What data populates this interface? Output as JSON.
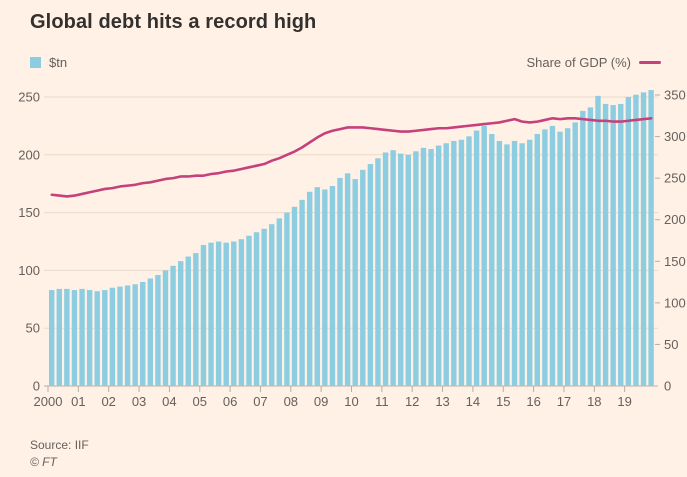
{
  "title": "Global debt hits a record high",
  "legend": {
    "bars_label": "$tn",
    "line_label": "Share of GDP (%)"
  },
  "source": "Source: IIF",
  "credit": "© FT",
  "colors": {
    "background": "#FFF1E5",
    "bar": "#8DCDE2",
    "line": "#C5417B",
    "title_text": "#33302E",
    "label_text": "#66605C",
    "gridline": "#EADACA",
    "axis": "#B9AEA3"
  },
  "chart_data": {
    "type": "bar",
    "subtype": "bar-with-line-overlay",
    "x_unit": "quarterly",
    "x_range": [
      "2000 Q1",
      "2019 Q4"
    ],
    "year_tick_labels": [
      "2000",
      "01",
      "02",
      "03",
      "04",
      "05",
      "06",
      "07",
      "08",
      "09",
      "10",
      "11",
      "12",
      "13",
      "14",
      "15",
      "16",
      "17",
      "18",
      "19"
    ],
    "left_axis": {
      "label": "$tn",
      "min": 0,
      "max": 250,
      "ticks": [
        0,
        50,
        100,
        150,
        200,
        250
      ]
    },
    "right_axis": {
      "label": "Share of GDP (%)",
      "min": 0,
      "max": 350,
      "ticks": [
        0,
        50,
        100,
        150,
        200,
        250,
        300,
        350
      ]
    },
    "grid": "horizontal-left-axis",
    "legend_position": "top",
    "series": [
      {
        "name": "$tn",
        "type": "bar",
        "axis": "left",
        "values": [
          83,
          84,
          84,
          83,
          84,
          83,
          82,
          83,
          85,
          86,
          87,
          88,
          90,
          93,
          96,
          100,
          104,
          108,
          112,
          115,
          122,
          124,
          125,
          124,
          125,
          127,
          130,
          133,
          136,
          140,
          145,
          150,
          155,
          161,
          168,
          172,
          170,
          173,
          180,
          184,
          179,
          187,
          192,
          197,
          202,
          204,
          201,
          200,
          203,
          206,
          205,
          208,
          210,
          212,
          213,
          216,
          221,
          225,
          218,
          212,
          209,
          212,
          210,
          213,
          218,
          222,
          225,
          220,
          223,
          228,
          238,
          241,
          251,
          244,
          243,
          244,
          250,
          252,
          254,
          256
        ]
      },
      {
        "name": "Share of GDP (%)",
        "type": "line",
        "axis": "right",
        "values": [
          230,
          229,
          228,
          229,
          231,
          233,
          235,
          237,
          238,
          240,
          241,
          242,
          244,
          245,
          247,
          249,
          250,
          252,
          252,
          253,
          253,
          255,
          256,
          258,
          259,
          261,
          263,
          265,
          267,
          271,
          274,
          278,
          282,
          287,
          293,
          299,
          304,
          307,
          309,
          311,
          311,
          311,
          310,
          309,
          308,
          307,
          306,
          306,
          307,
          308,
          309,
          310,
          310,
          311,
          312,
          313,
          314,
          315,
          316,
          317,
          319,
          321,
          318,
          317,
          318,
          320,
          322,
          321,
          322,
          322,
          321,
          320,
          319,
          319,
          318,
          318,
          319,
          320,
          321,
          322
        ]
      }
    ]
  }
}
